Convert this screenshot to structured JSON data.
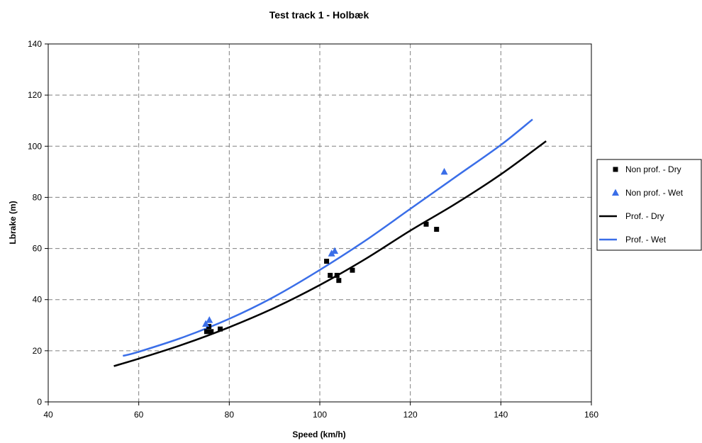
{
  "chart_data": {
    "type": "scatter",
    "title": "Test track 1 - Holbæk",
    "xlabel": "Speed (km/h)",
    "ylabel": "Lbrake (m)",
    "xlim": [
      40,
      160
    ],
    "ylim": [
      0,
      140
    ],
    "xticks": [
      40,
      60,
      80,
      100,
      120,
      140,
      160
    ],
    "yticks": [
      0,
      20,
      40,
      60,
      80,
      100,
      120,
      140
    ],
    "grid": true,
    "legend_position": "right",
    "series": [
      {
        "name": "Non prof. - Dry",
        "kind": "scatter",
        "marker": "square",
        "color": "#000000",
        "points": [
          [
            75.0,
            27.5
          ],
          [
            75.5,
            29.5
          ],
          [
            76.0,
            27.5
          ],
          [
            78.0,
            28.5
          ],
          [
            101.5,
            55.0
          ],
          [
            102.3,
            49.5
          ],
          [
            103.8,
            49.5
          ],
          [
            104.2,
            47.5
          ],
          [
            107.2,
            51.5
          ],
          [
            123.5,
            69.5
          ],
          [
            125.8,
            67.5
          ]
        ]
      },
      {
        "name": "Non prof. - Wet",
        "kind": "scatter",
        "marker": "triangle",
        "color": "#3a6ee8",
        "points": [
          [
            74.8,
            30.5
          ],
          [
            75.6,
            32.0
          ],
          [
            102.6,
            58.0
          ],
          [
            103.3,
            59.0
          ],
          [
            127.5,
            90.0
          ]
        ]
      },
      {
        "name": "Prof. - Dry",
        "kind": "line",
        "color": "#000000",
        "points": [
          [
            54.5,
            14.0
          ],
          [
            60,
            16.9
          ],
          [
            70,
            22.6
          ],
          [
            80,
            29.2
          ],
          [
            90,
            36.8
          ],
          [
            100,
            45.7
          ],
          [
            110,
            55.8
          ],
          [
            120,
            67.0
          ],
          [
            130,
            77.5
          ],
          [
            140,
            89.0
          ],
          [
            150,
            102.0
          ]
        ]
      },
      {
        "name": "Prof. - Wet",
        "kind": "line",
        "color": "#3a6ee8",
        "points": [
          [
            56.5,
            18.0
          ],
          [
            60,
            19.6
          ],
          [
            70,
            25.4
          ],
          [
            80,
            32.5
          ],
          [
            90,
            41.2
          ],
          [
            100,
            51.6
          ],
          [
            110,
            63.0
          ],
          [
            120,
            75.5
          ],
          [
            130,
            88.0
          ],
          [
            140,
            100.5
          ],
          [
            147,
            110.5
          ]
        ]
      }
    ]
  }
}
